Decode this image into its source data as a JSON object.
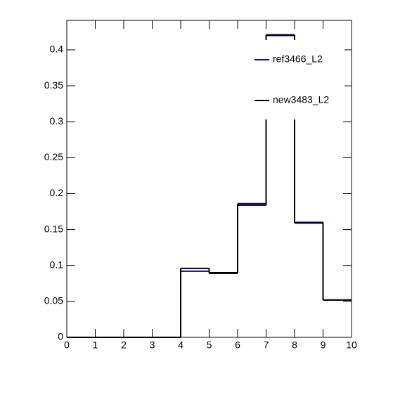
{
  "chart_data": {
    "type": "histogram",
    "bins": [
      0,
      1,
      2,
      3,
      4,
      5,
      6,
      7,
      8,
      9,
      10
    ],
    "series": [
      {
        "name": "ref3466_L2",
        "color": "#0000cc",
        "values": [
          0,
          0,
          0,
          0,
          0.092,
          0.089,
          0.186,
          0.42,
          0.16,
          0.052
        ]
      },
      {
        "name": "new3483_L2",
        "color": "#000000",
        "values": [
          0,
          0,
          0,
          0,
          0.096,
          0.09,
          0.184,
          0.421,
          0.159,
          0.052
        ]
      }
    ],
    "xlim": [
      0,
      10
    ],
    "xticks": [
      0,
      1,
      2,
      3,
      4,
      5,
      6,
      7,
      8,
      9,
      10
    ],
    "ylim": [
      0,
      0.441
    ],
    "yticks": [
      0,
      0.05,
      0.1,
      0.15,
      0.2,
      0.25,
      0.3,
      0.35,
      0.4
    ],
    "legend": "top-right"
  }
}
